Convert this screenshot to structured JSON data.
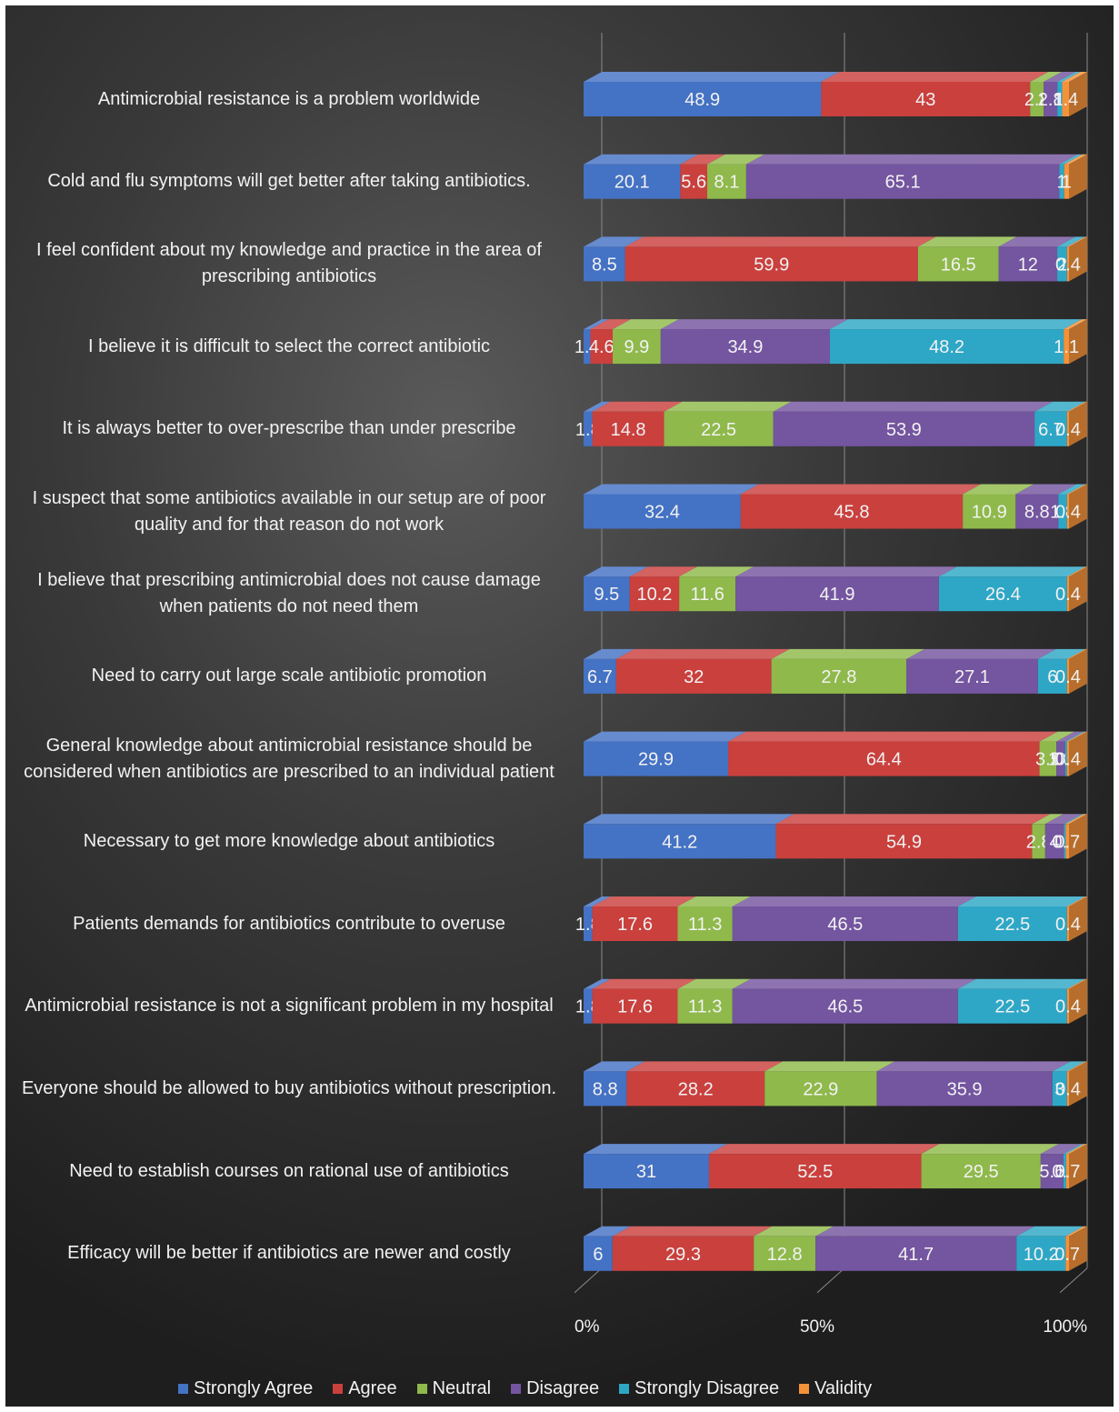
{
  "colors": {
    "Strongly Agree": "#4472c4",
    "Agree": "#c9403d",
    "Neutral": "#8fb94b",
    "Disagree": "#7455a0",
    "Strongly Disagree": "#2ea7c6",
    "Validity": "#f4923a"
  },
  "chart_data": {
    "type": "bar",
    "orientation": "horizontal",
    "stacking": "percent",
    "three_d": true,
    "grid": true,
    "legend_position": "bottom",
    "x_ticks": [
      "0%",
      "50%",
      "100%"
    ],
    "categories": [
      "Antimicrobial resistance is a problem worldwide",
      "Cold and flu symptoms will get better after taking antibiotics.",
      "I feel confident about my knowledge and practice in the area of prescribing antibiotics",
      "I believe it is difficult to select the correct antibiotic",
      "It is always better to over-prescribe than under prescribe",
      "I suspect that some antibiotics available in our setup are of poor quality and for that reason do not work",
      "I believe that prescribing antimicrobial does not cause damage when patients do not need them",
      "Need to carry out large scale antibiotic promotion",
      "General knowledge about antimicrobial resistance should be considered when antibiotics are prescribed to an individual patient",
      "Necessary to get more knowledge about antibiotics",
      "Patients demands for antibiotics contribute to overuse",
      "Antimicrobial resistance is not a significant problem in my hospital",
      "Everyone should be allowed to buy antibiotics without prescription.",
      "Need to establish courses on rational use of antibiotics",
      "Efficacy will be better if antibiotics are newer and costly"
    ],
    "series": [
      {
        "name": "Strongly Agree",
        "values": [
          48.9,
          20.1,
          8.5,
          1.4,
          1.8,
          32.4,
          9.5,
          6.7,
          29.9,
          41.2,
          1.8,
          1.8,
          8.8,
          31,
          6
        ]
      },
      {
        "name": "Agree",
        "values": [
          43,
          5.6,
          59.9,
          4.6,
          14.8,
          45.8,
          10.2,
          32,
          64.4,
          54.9,
          17.6,
          17.6,
          28.2,
          52.5,
          29.3
        ]
      },
      {
        "name": "Neutral",
        "values": [
          2.8,
          8.1,
          16.5,
          9.9,
          22.5,
          10.9,
          11.6,
          27.8,
          3.5,
          2.8,
          11.3,
          11.3,
          22.9,
          29.5,
          12.8
        ]
      },
      {
        "name": "Disagree",
        "values": [
          2.8,
          65.1,
          12,
          34.9,
          53.9,
          8.8,
          41.9,
          27.1,
          1.8,
          4,
          46.5,
          46.5,
          35.9,
          5.6,
          41.7
        ]
      },
      {
        "name": "Strongly Disagree",
        "values": [
          1,
          1,
          2,
          48.2,
          6.7,
          1.8,
          26.4,
          6,
          0.4,
          0.4,
          22.5,
          22.5,
          3,
          0.7,
          10.2
        ]
      },
      {
        "name": "Validity",
        "values": [
          1.4,
          1,
          0.4,
          1.1,
          0.4,
          0.4,
          0.4,
          0.4,
          0.4,
          0.7,
          0.4,
          0.4,
          0.4,
          0.7,
          0.7
        ]
      }
    ]
  }
}
